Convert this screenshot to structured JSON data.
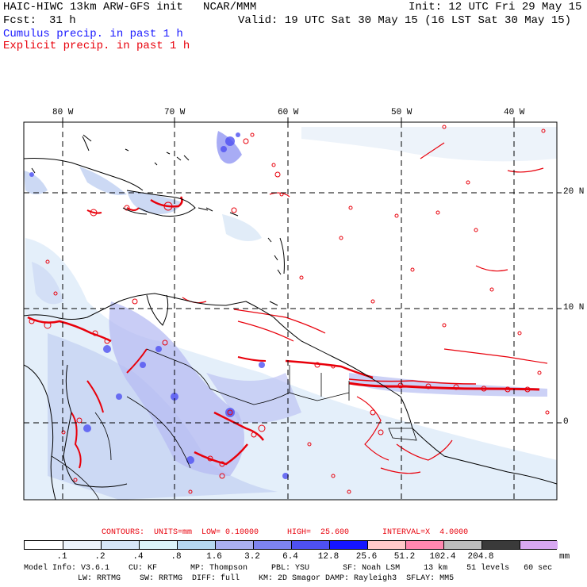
{
  "header": {
    "title": "HAIC-HIWC 13km ARW-GFS init   NCAR/MMM",
    "init": "Init: 12 UTC Fri 29 May 15",
    "fcst_label": "Fcst:",
    "fcst_value": "31 h",
    "valid": "Valid: 19 UTC Sat 30 May 15 (16 LST Sat 30 May 15)",
    "legend_cumulus": "Cumulus precip. in past 1 h",
    "legend_explicit": "Explicit precip. in past 1 h"
  },
  "map": {
    "lon_labels": [
      "80 W",
      "70 W",
      "60 W",
      "50 W",
      "40 W"
    ],
    "lat_labels": [
      "20 N",
      "10 N",
      "0"
    ],
    "colors": {
      "cumulus": "#1a1aff",
      "explicit": "#e8000b",
      "coast": "#000000",
      "grid": "#000000"
    }
  },
  "contours": {
    "text": "CONTOURS:  UNITS=mm  LOW= 0.10000      HIGH=  25.600       INTERVAL=X  4.0000"
  },
  "colorbar": {
    "levels": [
      ".1",
      ".2",
      ".4",
      ".8",
      "1.6",
      "3.2",
      "6.4",
      "12.8",
      "25.6",
      "51.2",
      "102.4",
      "204.8"
    ],
    "unit": "mm",
    "colors": [
      "#ffffff",
      "#ecf3fb",
      "#d6e6f7",
      "#dcf5fa",
      "#b6d8f0",
      "#aab0f0",
      "#7e84f0",
      "#4e50f2",
      "#1414ff",
      "#ffc9c9",
      "#ff88b0",
      "#bdbdbd",
      "#3a3a3a",
      "#d8a8f2"
    ]
  },
  "footer": {
    "line1": "Model Info: V3.6.1    CU: KF       MP: Thompson     PBL: YSU       SF: Noah LSM     13 km    51 levels   60 sec",
    "line2": "LW: RRTMG    SW: RRTMG  DIFF: full    KM: 2D Smagor DAMP: Rayleigh3  SFLAY: MM5"
  }
}
